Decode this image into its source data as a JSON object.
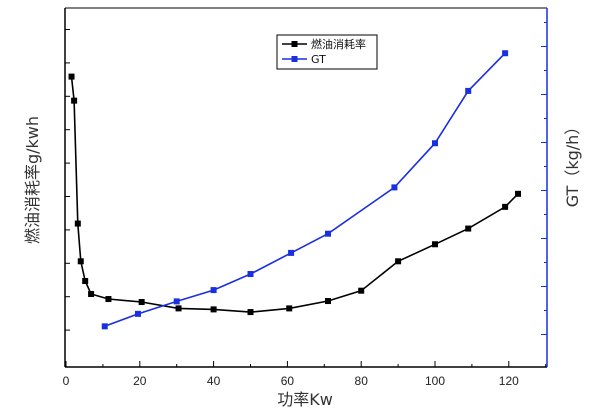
{
  "chart_data": {
    "type": "line",
    "title": "",
    "xlabel": "功率Kw",
    "ylabel_left": "燃油消耗率g/kwh",
    "ylabel_right": "GT（kg/h）",
    "xlim": [
      0,
      130
    ],
    "xticks": [
      0,
      20,
      40,
      60,
      80,
      100,
      120
    ],
    "legend_position": "top-center",
    "grid": false,
    "series": [
      {
        "name": "燃油消耗率",
        "color": "#000000",
        "axis": "left",
        "x": [
          1.5,
          2.2,
          3.2,
          4.0,
          5.2,
          6.8,
          11.5,
          20.5,
          30.5,
          40.0,
          50.0,
          60.5,
          71.0,
          80.0,
          90.0,
          100.0,
          109.0,
          119.0,
          122.5
        ],
        "y": [
          8.59,
          7.87,
          4.19,
          3.06,
          2.47,
          2.08,
          1.93,
          1.84,
          1.65,
          1.62,
          1.54,
          1.65,
          1.87,
          2.18,
          3.06,
          3.57,
          4.04,
          4.69,
          5.08
        ]
      },
      {
        "name": "GT",
        "color": "#1a2fe0",
        "axis": "right",
        "x": [
          10.5,
          19.5,
          30.0,
          40.0,
          50.0,
          61.0,
          71.0,
          89.0,
          100.0,
          109.0,
          119.0
        ],
        "y": [
          0.34,
          0.86,
          1.38,
          1.85,
          2.52,
          3.4,
          4.2,
          6.13,
          7.97,
          10.15,
          11.72
        ]
      }
    ]
  }
}
